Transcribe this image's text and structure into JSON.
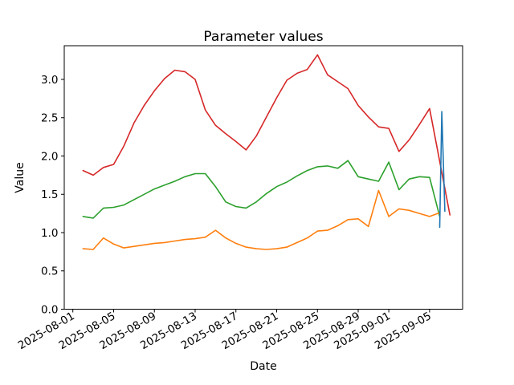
{
  "chart_data": {
    "type": "line",
    "title": "Parameter values",
    "xlabel": "Date",
    "ylabel": "Value",
    "date_of_day0": "2025-08-01",
    "xlim_days": [
      -0.84,
      38.24
    ],
    "ylim": [
      0.0,
      3.44
    ],
    "grid": false,
    "legend": "none",
    "x_ticks": [
      {
        "day": 0,
        "label": "2025-08-01"
      },
      {
        "day": 4,
        "label": "2025-08-05"
      },
      {
        "day": 8,
        "label": "2025-08-09"
      },
      {
        "day": 12,
        "label": "2025-08-13"
      },
      {
        "day": 16,
        "label": "2025-08-17"
      },
      {
        "day": 20,
        "label": "2025-08-21"
      },
      {
        "day": 24,
        "label": "2025-08-25"
      },
      {
        "day": 28,
        "label": "2025-08-29"
      },
      {
        "day": 31,
        "label": "2025-09-01"
      },
      {
        "day": 35,
        "label": "2025-09-05"
      }
    ],
    "y_ticks": [
      {
        "value": 0.0,
        "label": "0.0"
      },
      {
        "value": 0.5,
        "label": "0.5"
      },
      {
        "value": 1.0,
        "label": "1.0"
      },
      {
        "value": 1.5,
        "label": "1.5"
      },
      {
        "value": 2.0,
        "label": "2.0"
      },
      {
        "value": 2.5,
        "label": "2.5"
      },
      {
        "value": 3.0,
        "label": "3.0"
      }
    ],
    "series": [
      {
        "id": "red-line",
        "color": "#d62728",
        "x_start_day": 1,
        "values": [
          1.81,
          1.75,
          1.85,
          1.89,
          2.13,
          2.43,
          2.66,
          2.85,
          3.01,
          3.12,
          3.1,
          3.0,
          2.6,
          2.4,
          2.29,
          2.19,
          2.08,
          2.26,
          2.51,
          2.76,
          2.99,
          3.08,
          3.13,
          3.32,
          3.06,
          2.97,
          2.88,
          2.66,
          2.51,
          2.38,
          2.36,
          2.06,
          2.21,
          2.41,
          2.62,
          1.93,
          1.23
        ]
      },
      {
        "id": "green-line",
        "color": "#2ca02c",
        "x_start_day": 1,
        "values": [
          1.21,
          1.19,
          1.32,
          1.33,
          1.36,
          1.43,
          1.5,
          1.57,
          1.62,
          1.67,
          1.73,
          1.77,
          1.77,
          1.6,
          1.4,
          1.34,
          1.32,
          1.4,
          1.51,
          1.6,
          1.66,
          1.74,
          1.81,
          1.86,
          1.87,
          1.84,
          1.94,
          1.73,
          1.7,
          1.67,
          1.92,
          1.56,
          1.7,
          1.73,
          1.72,
          1.21
        ]
      },
      {
        "id": "orange-line",
        "color": "#ff7f0e",
        "x_start_day": 1,
        "values": [
          0.79,
          0.78,
          0.93,
          0.85,
          0.8,
          0.82,
          0.84,
          0.86,
          0.87,
          0.89,
          0.91,
          0.92,
          0.94,
          1.03,
          0.93,
          0.86,
          0.81,
          0.79,
          0.78,
          0.79,
          0.81,
          0.87,
          0.93,
          1.02,
          1.03,
          1.09,
          1.17,
          1.18,
          1.08,
          1.55,
          1.21,
          1.31,
          1.29,
          1.25,
          1.21,
          1.26
        ]
      },
      {
        "id": "blue-line",
        "color": "#1f77b4",
        "x_days": [
          36.0,
          36.2,
          36.5
        ],
        "values": [
          1.07,
          2.58,
          1.28
        ]
      }
    ],
    "axis_color": "#000000",
    "background_color": "#ffffff"
  }
}
